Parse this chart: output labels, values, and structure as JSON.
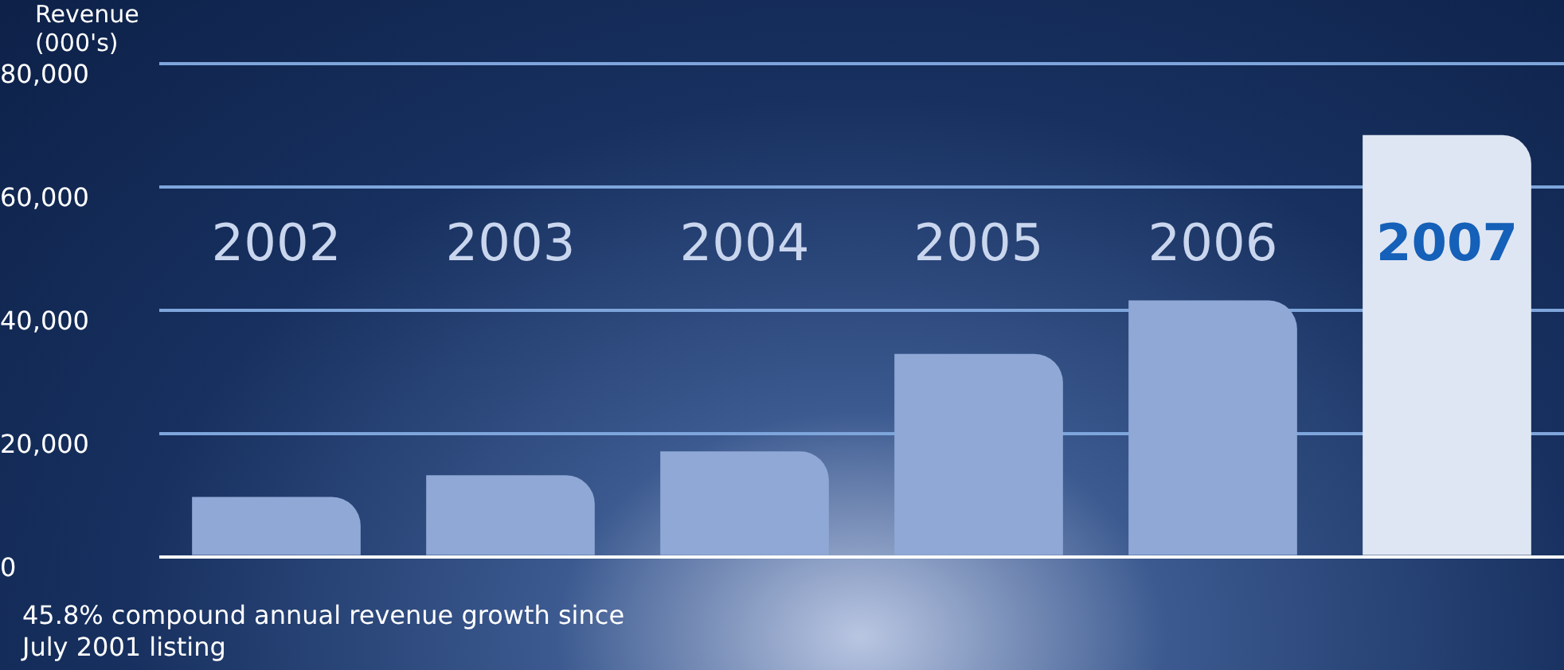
{
  "chart_data": {
    "type": "bar",
    "ylabel": "Revenue (000's)",
    "categories": [
      "2002",
      "2003",
      "2004",
      "2005",
      "2006",
      "2007"
    ],
    "values": [
      9700,
      13200,
      17100,
      32900,
      41600,
      68400
    ],
    "colors": [
      "#8fa8d6",
      "#8fa8d6",
      "#8fa8d6",
      "#8fa8d6",
      "#8fa8d6",
      "#dfe6f3"
    ],
    "ylim": [
      0,
      80000
    ],
    "yticks": [
      0,
      {
        "value": 20000,
        "label": "20,000"
      },
      {
        "value": 40000,
        "label": "40,000"
      },
      {
        "value": 60000,
        "label": "60,000"
      },
      {
        "value": 80000,
        "label": "80,000"
      }
    ],
    "grid": "y",
    "legend": false,
    "annotations": [
      "45.8% compound annual revenue growth since July 2001 listing"
    ]
  }
}
